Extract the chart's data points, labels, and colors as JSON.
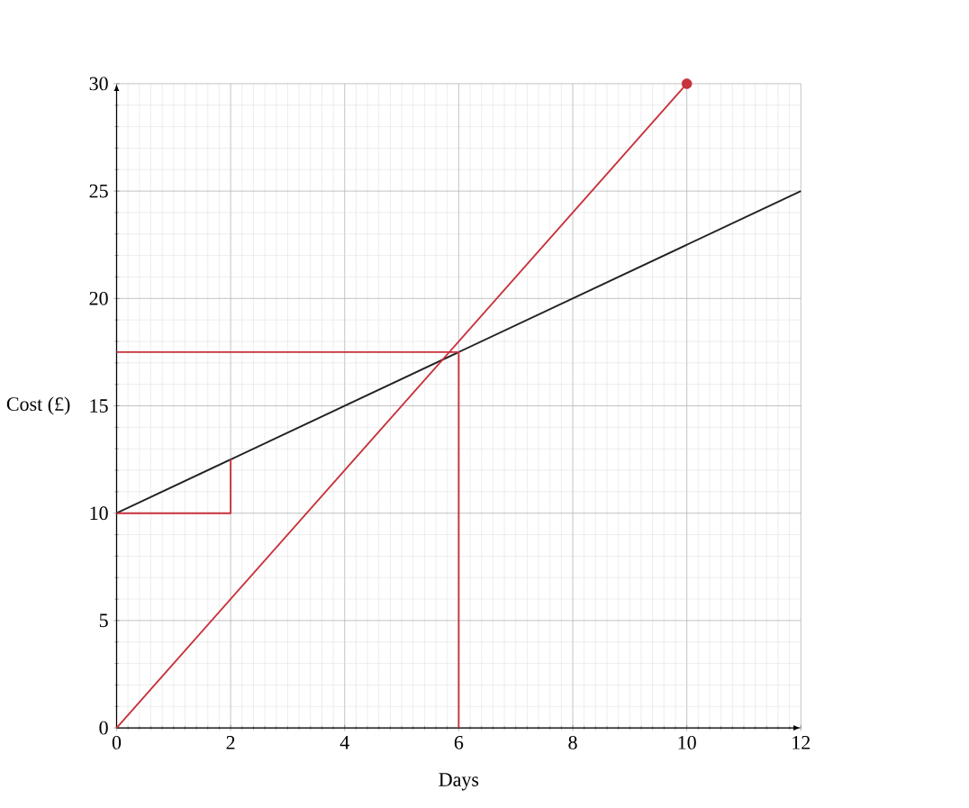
{
  "chart_data": {
    "type": "line",
    "xlabel": "Days",
    "ylabel": "Cost (£)",
    "xlim": [
      0,
      12
    ],
    "ylim": [
      0,
      30
    ],
    "xticks": [
      0,
      2,
      4,
      6,
      8,
      10,
      12
    ],
    "yticks": [
      0,
      5,
      10,
      15,
      20,
      25,
      30
    ],
    "grid": true,
    "series": [
      {
        "color": "#222222",
        "x": [
          0,
          12
        ],
        "values": [
          10,
          25
        ]
      },
      {
        "color": "#c8323c",
        "x": [
          0,
          10
        ],
        "values": [
          0,
          30
        ]
      },
      {
        "type": "scatter",
        "marker": "circle",
        "color": "#c8323c",
        "x": [
          10
        ],
        "values": [
          30
        ]
      },
      {
        "color": "#c8323c",
        "x": [
          0,
          6,
          6
        ],
        "values": [
          17.5,
          17.5,
          0
        ]
      },
      {
        "color": "#c8323c",
        "x": [
          0,
          2,
          2
        ],
        "values": [
          10,
          10,
          12.5
        ]
      }
    ]
  }
}
